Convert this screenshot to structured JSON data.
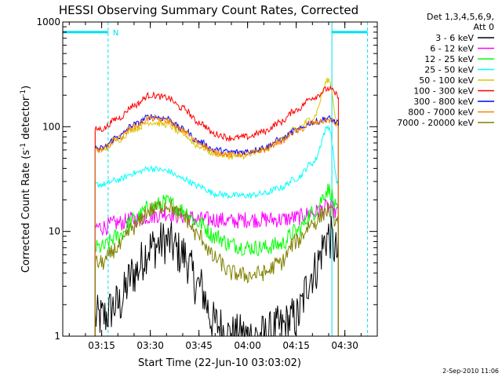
{
  "chart_data": {
    "type": "line",
    "title": "HESSI Observing Summary Count Rates, Corrected",
    "xlabel": "Start Time (22-Jun-10 03:03:02)",
    "ylabel": "Corrected Count Rate (s⁻¹ detector⁻¹)",
    "ylabel_main": "Corrected Count Rate (s",
    "ylabel_sup1": "-1",
    "ylabel_mid": " detector",
    "ylabel_sup2": "-1",
    "ylabel_end": ")",
    "y_scale": "log",
    "xlim": [
      "03:03",
      "04:40"
    ],
    "ylim": [
      1,
      1000
    ],
    "x_ticks": [
      "03:15",
      "03:30",
      "03:45",
      "04:00",
      "04:15",
      "04:30"
    ],
    "y_ticks": [
      "1",
      "10",
      "100",
      "1000"
    ],
    "legend_header": [
      "Det 1,3,4,5,6,9,",
      "Att 0"
    ],
    "legend_position": "top-right outside",
    "footer": "2-Sep-2010 11:06",
    "flags": {
      "night_marker_label": "N",
      "night_periods": [
        [
          "03:03",
          "03:17"
        ],
        [
          "04:26",
          "04:37"
        ]
      ],
      "night_color": "#00e0f0",
      "night_level": 800
    },
    "data_start": "03:13",
    "data_end": "04:28",
    "series": [
      {
        "name": "3 - 6 keV",
        "color": "#000000",
        "x": [
          "03:15",
          "03:20",
          "03:25",
          "03:30",
          "03:35",
          "03:40",
          "03:45",
          "03:50",
          "03:55",
          "04:00",
          "04:05",
          "04:10",
          "04:15",
          "04:20",
          "04:25",
          "04:28"
        ],
        "y": [
          1.5,
          2,
          4,
          7,
          8,
          6,
          3,
          1.3,
          1,
          1,
          1,
          1.2,
          1.5,
          4,
          9,
          6
        ]
      },
      {
        "name": "6 - 12 keV",
        "color": "#ff00ff",
        "x": [
          "03:15",
          "03:20",
          "03:25",
          "03:30",
          "03:35",
          "03:40",
          "03:45",
          "03:50",
          "03:55",
          "04:00",
          "04:05",
          "04:10",
          "04:15",
          "04:20",
          "04:25",
          "04:28"
        ],
        "y": [
          11,
          12,
          13,
          14,
          15,
          14,
          13,
          13,
          12.5,
          13,
          13,
          13,
          13.5,
          15,
          17,
          15
        ]
      },
      {
        "name": "12 - 25 keV",
        "color": "#00ff00",
        "x": [
          "03:15",
          "03:20",
          "03:25",
          "03:30",
          "03:35",
          "03:40",
          "03:45",
          "03:50",
          "03:55",
          "04:00",
          "04:05",
          "04:10",
          "04:15",
          "04:20",
          "04:25",
          "04:28"
        ],
        "y": [
          7,
          9,
          13,
          17,
          19,
          16,
          12,
          9,
          7.5,
          7,
          7,
          7.5,
          10,
          15,
          25,
          15
        ]
      },
      {
        "name": "25 - 50 keV",
        "color": "#00ffff",
        "x": [
          "03:15",
          "03:20",
          "03:25",
          "03:30",
          "03:35",
          "03:40",
          "03:45",
          "03:50",
          "03:55",
          "04:00",
          "04:05",
          "04:10",
          "04:15",
          "04:20",
          "04:25",
          "04:28"
        ],
        "y": [
          28,
          31,
          36,
          40,
          38,
          32,
          27,
          23,
          22,
          22,
          23,
          26,
          32,
          45,
          100,
          28
        ]
      },
      {
        "name": "50 - 100 keV",
        "color": "#d8c800",
        "x": [
          "03:15",
          "03:20",
          "03:25",
          "03:30",
          "03:35",
          "03:40",
          "03:45",
          "03:50",
          "03:55",
          "04:00",
          "04:05",
          "04:10",
          "04:15",
          "04:20",
          "04:25",
          "04:28"
        ],
        "y": [
          60,
          75,
          95,
          110,
          105,
          85,
          65,
          55,
          52,
          53,
          60,
          75,
          95,
          120,
          280,
          100
        ]
      },
      {
        "name": "100 - 300 keV",
        "color": "#ff0000",
        "x": [
          "03:15",
          "03:20",
          "03:25",
          "03:30",
          "03:35",
          "03:40",
          "03:45",
          "03:50",
          "03:55",
          "04:00",
          "04:05",
          "04:10",
          "04:15",
          "04:20",
          "04:25",
          "04:28"
        ],
        "y": [
          95,
          120,
          160,
          200,
          190,
          150,
          110,
          85,
          78,
          80,
          90,
          110,
          145,
          190,
          230,
          200
        ]
      },
      {
        "name": "300 - 800 keV",
        "color": "#0000ff",
        "x": [
          "03:15",
          "03:20",
          "03:25",
          "03:30",
          "03:35",
          "03:40",
          "03:45",
          "03:50",
          "03:55",
          "04:00",
          "04:05",
          "04:10",
          "04:15",
          "04:20",
          "04:25",
          "04:28"
        ],
        "y": [
          62,
          80,
          105,
          125,
          120,
          95,
          72,
          60,
          57,
          58,
          63,
          75,
          92,
          110,
          120,
          108
        ]
      },
      {
        "name": "800 - 7000 keV",
        "color": "#ff8000",
        "x": [
          "03:15",
          "03:20",
          "03:25",
          "03:30",
          "03:35",
          "03:40",
          "03:45",
          "03:50",
          "03:55",
          "04:00",
          "04:05",
          "04:10",
          "04:15",
          "04:20",
          "04:25",
          "04:28"
        ],
        "y": [
          60,
          78,
          100,
          120,
          115,
          92,
          70,
          57,
          54,
          55,
          60,
          72,
          90,
          108,
          115,
          105
        ]
      },
      {
        "name": "7000 - 20000 keV",
        "color": "#808000",
        "x": [
          "03:15",
          "03:20",
          "03:25",
          "03:30",
          "03:35",
          "03:40",
          "03:45",
          "03:50",
          "03:55",
          "04:00",
          "04:05",
          "04:10",
          "04:15",
          "04:20",
          "04:25",
          "04:28"
        ],
        "y": [
          5,
          7,
          11,
          16,
          18,
          14,
          9,
          5.5,
          4,
          3.8,
          4,
          5,
          8,
          12,
          16,
          12
        ]
      }
    ]
  }
}
